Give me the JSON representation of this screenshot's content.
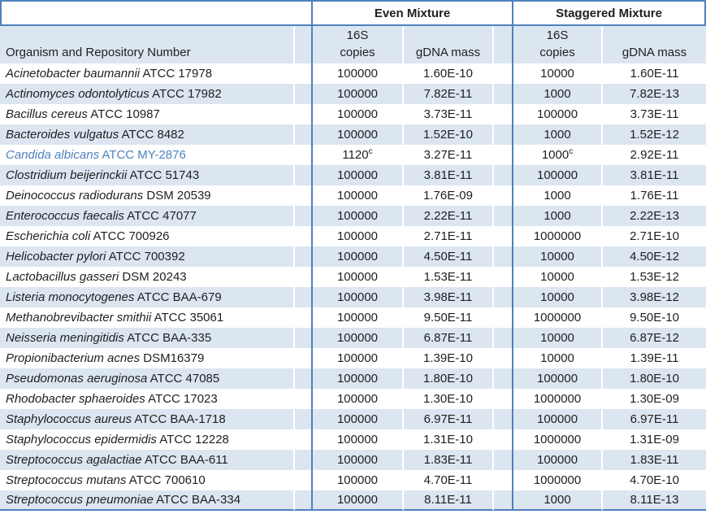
{
  "colors": {
    "accent_border": "#4f81bd",
    "row_shade": "#dce6f1",
    "highlight_text": "#4f81bd",
    "body_text": "#1f1f1f"
  },
  "header": {
    "even_group": "Even Mixture",
    "staggered_group": "Staggered Mixture",
    "organism_col": "Organism and Repository Number",
    "copies_line1": "16S",
    "copies_line2": "copies",
    "gdna_col": "gDNA mass"
  },
  "rows": [
    {
      "species": "Acinetobacter baumannii",
      "repository": "ATCC 17978",
      "even_copies": "100000",
      "even_copies_note": "",
      "even_gdna": "1.60E-10",
      "stag_copies": "10000",
      "stag_copies_note": "",
      "stag_gdna": "1.60E-11",
      "highlight": false
    },
    {
      "species": "Actinomyces odontolyticus",
      "repository": "ATCC 17982",
      "even_copies": "100000",
      "even_copies_note": "",
      "even_gdna": "7.82E-11",
      "stag_copies": "1000",
      "stag_copies_note": "",
      "stag_gdna": "7.82E-13",
      "highlight": false
    },
    {
      "species": "Bacillus cereus",
      "repository": "ATCC 10987",
      "even_copies": "100000",
      "even_copies_note": "",
      "even_gdna": "3.73E-11",
      "stag_copies": "100000",
      "stag_copies_note": "",
      "stag_gdna": "3.73E-11",
      "highlight": false
    },
    {
      "species": "Bacteroides vulgatus",
      "repository": "ATCC 8482",
      "even_copies": "100000",
      "even_copies_note": "",
      "even_gdna": "1.52E-10",
      "stag_copies": "1000",
      "stag_copies_note": "",
      "stag_gdna": "1.52E-12",
      "highlight": false
    },
    {
      "species": "Candida albicans",
      "repository": "ATCC MY-2876",
      "even_copies": "1120",
      "even_copies_note": "c",
      "even_gdna": "3.27E-11",
      "stag_copies": "1000",
      "stag_copies_note": "c",
      "stag_gdna": "2.92E-11",
      "highlight": true
    },
    {
      "species": "Clostridium beijerinckii",
      "repository": "ATCC 51743",
      "even_copies": "100000",
      "even_copies_note": "",
      "even_gdna": "3.81E-11",
      "stag_copies": "100000",
      "stag_copies_note": "",
      "stag_gdna": "3.81E-11",
      "highlight": false
    },
    {
      "species": "Deinococcus radiodurans",
      "repository": "DSM 20539",
      "even_copies": "100000",
      "even_copies_note": "",
      "even_gdna": "1.76E-09",
      "stag_copies": "1000",
      "stag_copies_note": "",
      "stag_gdna": "1.76E-11",
      "highlight": false
    },
    {
      "species": "Enterococcus faecalis",
      "repository": "ATCC 47077",
      "even_copies": "100000",
      "even_copies_note": "",
      "even_gdna": "2.22E-11",
      "stag_copies": "1000",
      "stag_copies_note": "",
      "stag_gdna": "2.22E-13",
      "highlight": false
    },
    {
      "species": "Escherichia coli",
      "repository": "ATCC 700926",
      "even_copies": "100000",
      "even_copies_note": "",
      "even_gdna": "2.71E-11",
      "stag_copies": "1000000",
      "stag_copies_note": "",
      "stag_gdna": "2.71E-10",
      "highlight": false
    },
    {
      "species": "Helicobacter pylori",
      "repository": "ATCC 700392",
      "even_copies": "100000",
      "even_copies_note": "",
      "even_gdna": "4.50E-11",
      "stag_copies": "10000",
      "stag_copies_note": "",
      "stag_gdna": "4.50E-12",
      "highlight": false
    },
    {
      "species": "Lactobacillus gasseri",
      "repository": "DSM 20243",
      "even_copies": "100000",
      "even_copies_note": "",
      "even_gdna": "1.53E-11",
      "stag_copies": "10000",
      "stag_copies_note": "",
      "stag_gdna": "1.53E-12",
      "highlight": false
    },
    {
      "species": "Listeria monocytogenes",
      "repository": "ATCC BAA-679",
      "even_copies": "100000",
      "even_copies_note": "",
      "even_gdna": "3.98E-11",
      "stag_copies": "10000",
      "stag_copies_note": "",
      "stag_gdna": "3.98E-12",
      "highlight": false
    },
    {
      "species": "Methanobrevibacter smithii",
      "repository": "ATCC 35061",
      "even_copies": "100000",
      "even_copies_note": "",
      "even_gdna": "9.50E-11",
      "stag_copies": "1000000",
      "stag_copies_note": "",
      "stag_gdna": "9.50E-10",
      "highlight": false
    },
    {
      "species": "Neisseria meningitidis",
      "repository": "ATCC BAA-335",
      "even_copies": "100000",
      "even_copies_note": "",
      "even_gdna": "6.87E-11",
      "stag_copies": "10000",
      "stag_copies_note": "",
      "stag_gdna": "6.87E-12",
      "highlight": false
    },
    {
      "species": "Propionibacterium acnes",
      "repository": "DSM16379",
      "even_copies": "100000",
      "even_copies_note": "",
      "even_gdna": "1.39E-10",
      "stag_copies": "10000",
      "stag_copies_note": "",
      "stag_gdna": "1.39E-11",
      "highlight": false
    },
    {
      "species": "Pseudomonas aeruginosa",
      "repository": "ATCC 47085",
      "even_copies": "100000",
      "even_copies_note": "",
      "even_gdna": "1.80E-10",
      "stag_copies": "100000",
      "stag_copies_note": "",
      "stag_gdna": "1.80E-10",
      "highlight": false
    },
    {
      "species": "Rhodobacter sphaeroides",
      "repository": "ATCC 17023",
      "even_copies": "100000",
      "even_copies_note": "",
      "even_gdna": "1.30E-10",
      "stag_copies": "1000000",
      "stag_copies_note": "",
      "stag_gdna": "1.30E-09",
      "highlight": false
    },
    {
      "species": "Staphylococcus aureus",
      "repository": "ATCC BAA-1718",
      "even_copies": "100000",
      "even_copies_note": "",
      "even_gdna": "6.97E-11",
      "stag_copies": "100000",
      "stag_copies_note": "",
      "stag_gdna": "6.97E-11",
      "highlight": false
    },
    {
      "species": "Staphylococcus epidermidis",
      "repository": "ATCC 12228",
      "even_copies": "100000",
      "even_copies_note": "",
      "even_gdna": "1.31E-10",
      "stag_copies": "1000000",
      "stag_copies_note": "",
      "stag_gdna": "1.31E-09",
      "highlight": false
    },
    {
      "species": "Streptococcus agalactiae",
      "repository": "ATCC BAA-611",
      "even_copies": "100000",
      "even_copies_note": "",
      "even_gdna": "1.83E-11",
      "stag_copies": "100000",
      "stag_copies_note": "",
      "stag_gdna": "1.83E-11",
      "highlight": false
    },
    {
      "species": "Streptococcus mutans",
      "repository": "ATCC 700610",
      "even_copies": "100000",
      "even_copies_note": "",
      "even_gdna": "4.70E-11",
      "stag_copies": "1000000",
      "stag_copies_note": "",
      "stag_gdna": "4.70E-10",
      "highlight": false
    },
    {
      "species": "Streptococcus pneumoniae",
      "repository": "ATCC BAA-334",
      "even_copies": "100000",
      "even_copies_note": "",
      "even_gdna": "8.11E-11",
      "stag_copies": "1000",
      "stag_copies_note": "",
      "stag_gdna": "8.11E-13",
      "highlight": false
    }
  ]
}
